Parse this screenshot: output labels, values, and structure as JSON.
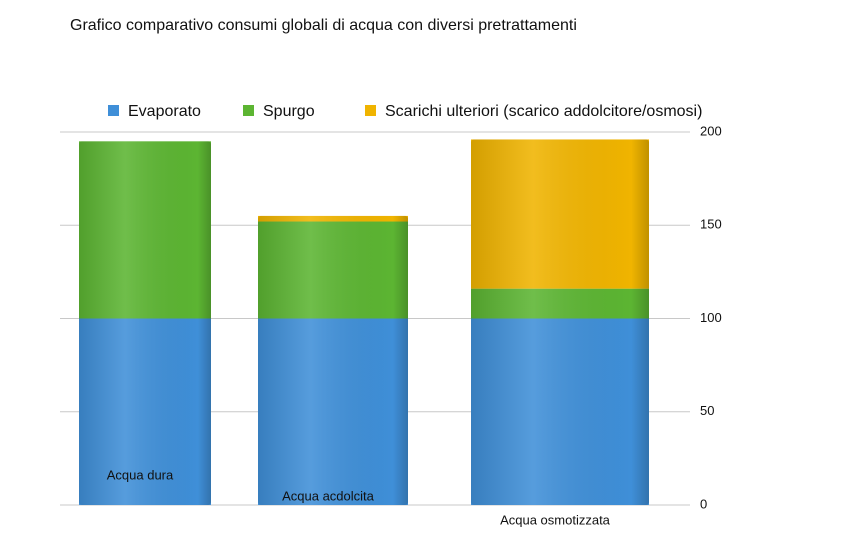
{
  "chart_data": {
    "type": "stacked-bar",
    "title": "Grafico comparativo consumi globali di acqua con diversi pretrattamenti",
    "categories": [
      "Acqua dura",
      "Acqua acdolcita",
      "Acqua osmotizzata"
    ],
    "series": [
      {
        "name": "Evaporato",
        "color": "#3f8fd8",
        "values": [
          100,
          100,
          100
        ]
      },
      {
        "name": "Spurgo",
        "color": "#5cb532",
        "values": [
          95,
          52,
          16
        ]
      },
      {
        "name": "Scarichi ulteriori (scarico addolcitore/osmosi)",
        "color": "#f0b400",
        "values": [
          0,
          3,
          80
        ]
      }
    ],
    "ylim": [
      0,
      200
    ],
    "yticks": [
      0,
      50,
      100,
      150,
      200
    ],
    "grid": true
  }
}
